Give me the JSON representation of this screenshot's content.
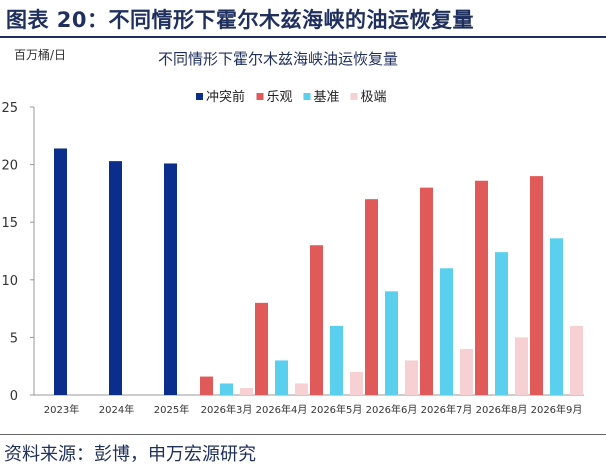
{
  "figure": {
    "title": "图表 20：不同情形下霍尔木兹海峡的油运恢复量",
    "source": "资料来源：彭博，申万宏源研究"
  },
  "chart_data": {
    "type": "bar",
    "title": "不同情形下霍尔木兹海峡油运恢复量",
    "unit_label": "百万桶/日",
    "xlabel": "",
    "ylabel": "百万桶/日",
    "ylim": [
      0,
      25
    ],
    "yticks": [
      0,
      5,
      10,
      15,
      20,
      25
    ],
    "grid": false,
    "legend_position": "top-right",
    "categories": [
      "2023年",
      "2024年",
      "2025年",
      "2026年3月",
      "2026年4月",
      "2026年5月",
      "2026年6月",
      "2026年7月",
      "2026年8月",
      "2026年9月"
    ],
    "series": [
      {
        "name": "冲突前",
        "color": "#0b2e8c",
        "values": [
          21.4,
          20.3,
          20.1,
          null,
          null,
          null,
          null,
          null,
          null,
          null
        ]
      },
      {
        "name": "乐观",
        "color": "#e05a5a",
        "values": [
          null,
          null,
          null,
          1.6,
          8.0,
          13.0,
          17.0,
          18.0,
          18.6,
          19.0
        ]
      },
      {
        "name": "基准",
        "color": "#5bcfee",
        "values": [
          null,
          null,
          null,
          1.0,
          3.0,
          6.0,
          9.0,
          11.0,
          12.4,
          13.6
        ]
      },
      {
        "name": "极端",
        "color": "#f6d0d2",
        "values": [
          null,
          null,
          null,
          0.6,
          1.0,
          2.0,
          3.0,
          4.0,
          5.0,
          6.0
        ]
      }
    ]
  }
}
